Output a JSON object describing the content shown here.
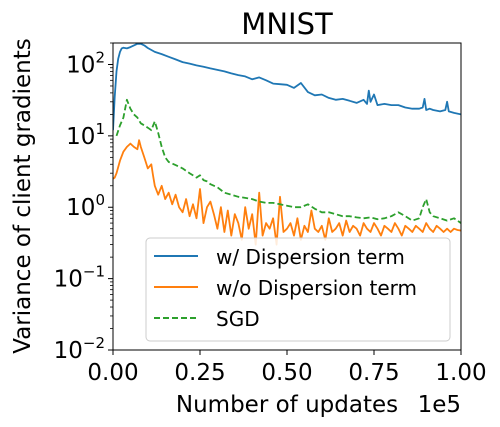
{
  "chart_data": {
    "type": "line",
    "title": "MNIST",
    "xlabel": "Number of updates",
    "ylabel": "Variance of client gradients",
    "x_offset_text": "1e5",
    "xscale": "linear",
    "yscale": "log",
    "xlim": [
      0,
      100000
    ],
    "ylim": [
      0.01,
      200
    ],
    "x_tick_values": [
      0,
      25000,
      50000,
      75000,
      100000
    ],
    "x_tick_labels": [
      "0.00",
      "0.25",
      "0.50",
      "0.75",
      "1.00"
    ],
    "y_tick_values": [
      0.01,
      0.1,
      1,
      10,
      100
    ],
    "y_tick_labels": [
      {
        "base": "10",
        "exp": "−2"
      },
      {
        "base": "10",
        "exp": "−1"
      },
      {
        "base": "10",
        "exp": "0"
      },
      {
        "base": "10",
        "exp": "1"
      },
      {
        "base": "10",
        "exp": "2"
      }
    ],
    "grid": false,
    "legend_position": "lower-right",
    "series": [
      {
        "name": "w/ Dispersion term",
        "color": "#1f77b4",
        "style": "solid",
        "x": [
          0,
          500,
          1000,
          1500,
          2000,
          2500,
          3000,
          4000,
          5000,
          6000,
          7000,
          8000,
          9000,
          10000,
          12000,
          14000,
          16000,
          18000,
          20000,
          22000,
          24000,
          26000,
          28000,
          30000,
          32000,
          34000,
          36000,
          38000,
          40000,
          42000,
          44000,
          46000,
          48000,
          50000,
          52000,
          54000,
          56000,
          58000,
          60000,
          62000,
          64000,
          66000,
          68000,
          70000,
          72000,
          73000,
          73500,
          74000,
          75000,
          76000,
          78000,
          80000,
          82000,
          84000,
          86000,
          88000,
          89000,
          89500,
          90000,
          91000,
          92000,
          94000,
          95500,
          96000,
          96500,
          98000,
          100000
        ],
        "y": [
          12,
          35,
          80,
          120,
          150,
          168,
          172,
          168,
          175,
          185,
          195,
          195,
          185,
          170,
          150,
          140,
          128,
          118,
          108,
          103,
          97,
          93,
          88,
          84,
          80,
          75,
          71,
          68,
          62,
          66,
          60,
          54,
          53,
          52,
          47,
          55,
          41,
          37,
          38,
          34,
          32,
          33,
          31,
          29,
          32,
          28,
          43,
          30,
          38,
          27,
          28,
          27,
          27,
          25,
          24,
          24,
          25,
          33,
          23,
          24,
          23,
          22,
          23,
          30,
          22,
          21,
          20
        ]
      },
      {
        "name": "w/o Dispersion term",
        "color": "#ff7f0e",
        "style": "solid",
        "x": [
          0,
          500,
          1000,
          2000,
          3000,
          4000,
          5000,
          6000,
          7000,
          7500,
          8000,
          9000,
          10000,
          11000,
          11500,
          12000,
          13000,
          14000,
          15000,
          16000,
          17000,
          18000,
          19000,
          20000,
          21000,
          22000,
          23000,
          24000,
          25000,
          26000,
          27000,
          28000,
          29000,
          30000,
          31000,
          32000,
          33000,
          34000,
          35000,
          36000,
          37000,
          38000,
          39000,
          40000,
          41000,
          42000,
          43000,
          44000,
          45000,
          46000,
          47000,
          48000,
          49000,
          50000,
          51000,
          52000,
          53000,
          54000,
          55000,
          56000,
          57000,
          58000,
          59000,
          60000,
          61000,
          62000,
          63000,
          64000,
          65000,
          66000,
          67000,
          68000,
          69000,
          70000,
          71000,
          72000,
          73000,
          74000,
          75000,
          76000,
          77000,
          78000,
          79000,
          80000,
          81000,
          82000,
          83000,
          84000,
          85000,
          86000,
          87000,
          88000,
          89000,
          90000,
          91000,
          92000,
          93000,
          94000,
          95000,
          96000,
          97000,
          98000,
          99000,
          100000
        ],
        "y": [
          2.5,
          2.6,
          3.0,
          4.5,
          6.0,
          7.0,
          7.8,
          7.0,
          6.5,
          8.7,
          7.0,
          5.0,
          3.5,
          4.0,
          2.8,
          2.0,
          1.5,
          2.0,
          1.3,
          1.6,
          1.1,
          1.5,
          1.0,
          0.85,
          1.3,
          0.75,
          1.1,
          0.7,
          1.8,
          0.6,
          1.0,
          1.2,
          0.8,
          0.5,
          1.0,
          0.45,
          0.9,
          0.4,
          0.8,
          0.6,
          0.35,
          1.0,
          0.5,
          0.8,
          0.3,
          1.6,
          0.4,
          0.6,
          0.5,
          0.7,
          0.3,
          1.4,
          0.45,
          0.5,
          0.6,
          0.4,
          0.7,
          0.35,
          0.55,
          0.45,
          0.9,
          0.5,
          0.45,
          0.55,
          0.35,
          0.7,
          0.45,
          0.5,
          0.6,
          0.4,
          0.65,
          0.45,
          0.55,
          0.5,
          0.4,
          0.6,
          0.5,
          0.45,
          0.6,
          0.5,
          0.4,
          0.55,
          0.5,
          0.45,
          0.6,
          0.5,
          0.4,
          0.55,
          0.5,
          0.45,
          0.55,
          0.5,
          0.45,
          0.6,
          0.5,
          0.45,
          0.55,
          0.5,
          0.45,
          0.5,
          0.45,
          0.5,
          0.48,
          0.47
        ]
      },
      {
        "name": "SGD",
        "color": "#2ca02c",
        "style": "dashed",
        "x": [
          1000,
          2000,
          3000,
          4000,
          5000,
          6000,
          7000,
          8000,
          9000,
          10000,
          11000,
          12000,
          13000,
          14000,
          15000,
          16000,
          18000,
          20000,
          22000,
          24000,
          25000,
          26000,
          27000,
          28000,
          30000,
          32000,
          34000,
          36000,
          38000,
          40000,
          42000,
          44000,
          46000,
          48000,
          50000,
          52000,
          54000,
          56000,
          58000,
          60000,
          62000,
          64000,
          66000,
          68000,
          70000,
          72000,
          74000,
          76000,
          78000,
          80000,
          82000,
          84000,
          86000,
          88000,
          89000,
          90000,
          91000,
          92000,
          94000,
          96000,
          98000,
          100000
        ],
        "y": [
          10,
          14,
          18,
          32,
          24,
          20,
          18,
          15,
          14,
          13,
          12,
          16,
          11,
          7,
          5,
          4.3,
          3.9,
          3.5,
          3.0,
          2.6,
          2.8,
          2.4,
          2.3,
          2.1,
          1.9,
          1.6,
          1.5,
          1.4,
          1.35,
          1.3,
          1.2,
          1.15,
          1.15,
          1.1,
          1.05,
          1.0,
          1.0,
          1.1,
          0.95,
          0.85,
          0.85,
          0.8,
          0.75,
          0.75,
          0.72,
          0.7,
          0.72,
          0.68,
          0.7,
          0.75,
          0.85,
          0.75,
          0.65,
          0.7,
          1.0,
          1.3,
          0.85,
          0.75,
          0.7,
          0.65,
          0.7,
          0.6
        ]
      }
    ]
  }
}
